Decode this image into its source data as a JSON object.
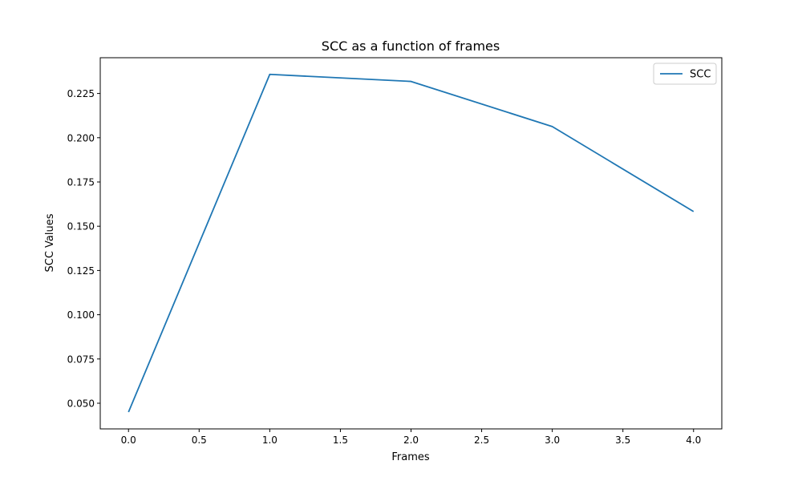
{
  "chart_data": {
    "type": "line",
    "title": "SCC as a function of frames",
    "xlabel": "Frames",
    "ylabel": "SCC Values",
    "xlim": [
      -0.2,
      4.2
    ],
    "ylim": [
      0.0355,
      0.2452
    ],
    "xticks": [
      0.0,
      0.5,
      1.0,
      1.5,
      2.0,
      2.5,
      3.0,
      3.5,
      4.0
    ],
    "xtick_labels": [
      "0.0",
      "0.5",
      "1.0",
      "1.5",
      "2.0",
      "2.5",
      "3.0",
      "3.5",
      "4.0"
    ],
    "yticks": [
      0.05,
      0.075,
      0.1,
      0.125,
      0.15,
      0.175,
      0.2,
      0.225
    ],
    "ytick_labels": [
      "0.050",
      "0.075",
      "0.100",
      "0.125",
      "0.150",
      "0.175",
      "0.200",
      "0.225"
    ],
    "grid": false,
    "legend_position": "top-right",
    "series": [
      {
        "name": "SCC",
        "color": "#1f77b4",
        "x": [
          0,
          1,
          2,
          3,
          4
        ],
        "y": [
          0.045,
          0.2358,
          0.2318,
          0.2063,
          0.1583
        ]
      }
    ]
  }
}
